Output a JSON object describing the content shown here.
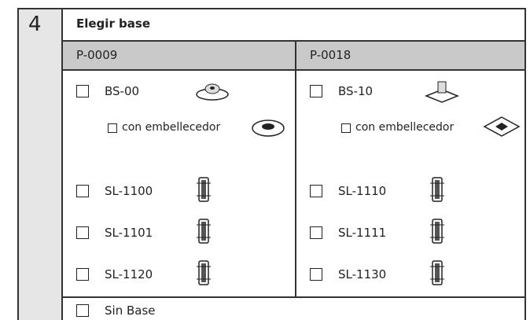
{
  "step": "4",
  "title": "Elegir base",
  "columns": [
    {
      "header": "P-0009",
      "base": {
        "label": "BS-00",
        "sub": "con embellecedor"
      },
      "options": [
        "SL-1100",
        "SL-1101",
        "SL-1120"
      ]
    },
    {
      "header": "P-0018",
      "base": {
        "label": "BS-10",
        "sub": "con embellecedor"
      },
      "options": [
        "SL-1110",
        "SL-1111",
        "SL-1130"
      ]
    }
  ],
  "footer": "Sin Base"
}
